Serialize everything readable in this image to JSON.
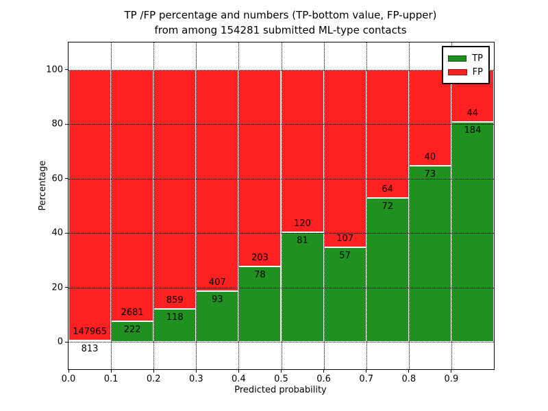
{
  "title": {
    "line1": "TP /FP percentage and numbers (TP-bottom value, FP-upper)",
    "line2": "from among 154281 submitted ML-type contacts"
  },
  "axes": {
    "ylabel": "Percentage",
    "xlabel": "Predicted probability",
    "ytick_labels": [
      "0",
      "20",
      "40",
      "60",
      "80",
      "100"
    ],
    "xtick_labels": [
      "0.0",
      "0.1",
      "0.2",
      "0.3",
      "0.4",
      "0.5",
      "0.6",
      "0.7",
      "0.8",
      "0.9"
    ]
  },
  "legend": [
    {
      "label": "TP",
      "color": "#209020"
    },
    {
      "label": "FP",
      "color": "#ff2121"
    }
  ],
  "colors": {
    "tp_green": "#209020",
    "fp_red": "#ff2121",
    "grid": "#000000",
    "background": "#ffffff"
  },
  "chart_data": {
    "type": "bar",
    "stacked": true,
    "title": "TP /FP percentage and numbers (TP-bottom value, FP-upper) from among 154281 submitted ML-type contacts",
    "xlabel": "Predicted probability",
    "ylabel": "Percentage",
    "total_contacts": 154281,
    "categories": [
      "0.0-0.1",
      "0.1-0.2",
      "0.2-0.3",
      "0.3-0.4",
      "0.4-0.5",
      "0.5-0.6",
      "0.6-0.7",
      "0.7-0.8",
      "0.8-0.9",
      "0.9-1.0"
    ],
    "bin_start": [
      0.0,
      0.1,
      0.2,
      0.3,
      0.4,
      0.5,
      0.6,
      0.7,
      0.8,
      0.9
    ],
    "bin_width": 0.1,
    "series": [
      {
        "name": "TP",
        "color": "#209020",
        "counts": [
          813,
          222,
          118,
          93,
          78,
          81,
          57,
          72,
          73,
          184
        ]
      },
      {
        "name": "FP",
        "color": "#ff2121",
        "counts": [
          147965,
          2681,
          859,
          407,
          203,
          120,
          107,
          64,
          40,
          44
        ]
      }
    ],
    "tp_percent": [
      0.55,
      7.65,
      12.08,
      18.6,
      27.76,
      40.3,
      34.76,
      52.94,
      64.6,
      80.7
    ],
    "ylim": [
      -10,
      110
    ],
    "xlim": [
      0.0,
      1.0
    ],
    "yticks": [
      0,
      20,
      40,
      60,
      80,
      100
    ],
    "xticks": [
      0.0,
      0.1,
      0.2,
      0.3,
      0.4,
      0.5,
      0.6,
      0.7,
      0.8,
      0.9
    ],
    "grid": "dotted",
    "legend_position": "upper right"
  }
}
